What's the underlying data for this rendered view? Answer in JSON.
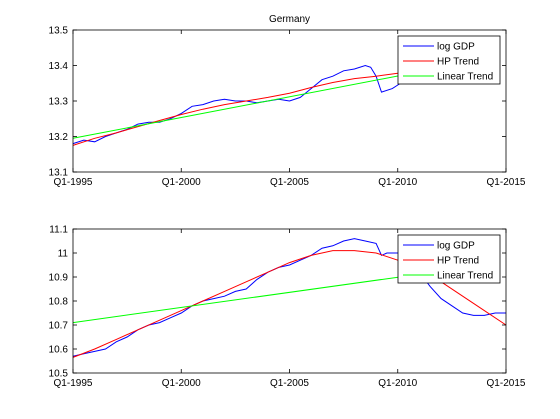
{
  "chart_data": [
    {
      "type": "line",
      "title": "Germany",
      "xlabel": "",
      "ylabel": "",
      "xlim": [
        1995,
        2015
      ],
      "ylim": [
        13.1,
        13.5
      ],
      "xticks": [
        1995,
        2000,
        2005,
        2010,
        2015
      ],
      "xtick_labels": [
        "Q1-1995",
        "Q1-2000",
        "Q1-2005",
        "Q1-2010",
        "Q1-2015"
      ],
      "yticks": [
        13.1,
        13.2,
        13.3,
        13.4,
        13.5
      ],
      "ytick_labels": [
        "13.1",
        "13.2",
        "13.3",
        "13.4",
        "13.5"
      ],
      "legend_position": "top-right",
      "series": [
        {
          "name": "log GDP",
          "color": "#0000ff",
          "points": [
            [
              1995.0,
              13.18
            ],
            [
              1995.5,
              13.19
            ],
            [
              1996.0,
              13.185
            ],
            [
              1996.5,
              13.2
            ],
            [
              1997.0,
              13.21
            ],
            [
              1997.5,
              13.22
            ],
            [
              1998.0,
              13.235
            ],
            [
              1998.5,
              13.24
            ],
            [
              1999.0,
              13.24
            ],
            [
              1999.5,
              13.25
            ],
            [
              2000.0,
              13.265
            ],
            [
              2000.5,
              13.285
            ],
            [
              2001.0,
              13.29
            ],
            [
              2001.5,
              13.3
            ],
            [
              2002.0,
              13.305
            ],
            [
              2002.5,
              13.3
            ],
            [
              2003.0,
              13.3
            ],
            [
              2003.5,
              13.295
            ],
            [
              2004.0,
              13.3
            ],
            [
              2004.5,
              13.305
            ],
            [
              2005.0,
              13.3
            ],
            [
              2005.5,
              13.31
            ],
            [
              2006.0,
              13.335
            ],
            [
              2006.5,
              13.36
            ],
            [
              2007.0,
              13.37
            ],
            [
              2007.5,
              13.385
            ],
            [
              2008.0,
              13.39
            ],
            [
              2008.5,
              13.4
            ],
            [
              2008.75,
              13.395
            ],
            [
              2009.0,
              13.37
            ],
            [
              2009.25,
              13.325
            ],
            [
              2009.75,
              13.335
            ],
            [
              2010.0,
              13.345
            ],
            [
              2010.5,
              13.365
            ],
            [
              2011.0,
              13.38
            ],
            [
              2011.5,
              13.385
            ]
          ]
        },
        {
          "name": "HP Trend",
          "color": "#ff0000",
          "points": [
            [
              1995.0,
              13.175
            ],
            [
              1996.0,
              13.195
            ],
            [
              1997.0,
              13.21
            ],
            [
              1998.0,
              13.228
            ],
            [
              1999.0,
              13.245
            ],
            [
              2000.0,
              13.262
            ],
            [
              2001.0,
              13.277
            ],
            [
              2002.0,
              13.29
            ],
            [
              2003.0,
              13.3
            ],
            [
              2004.0,
              13.31
            ],
            [
              2005.0,
              13.322
            ],
            [
              2006.0,
              13.338
            ],
            [
              2007.0,
              13.352
            ],
            [
              2008.0,
              13.363
            ],
            [
              2009.0,
              13.37
            ],
            [
              2010.0,
              13.378
            ],
            [
              2011.0,
              13.385
            ],
            [
              2011.5,
              13.39
            ]
          ]
        },
        {
          "name": "Linear Trend",
          "color": "#00ff00",
          "points": [
            [
              1995.0,
              13.195
            ],
            [
              2011.5,
              13.388
            ]
          ]
        }
      ]
    },
    {
      "type": "line",
      "title": "",
      "xlabel": "",
      "ylabel": "",
      "xlim": [
        1995,
        2015
      ],
      "ylim": [
        10.5,
        11.1
      ],
      "xticks": [
        1995,
        2000,
        2005,
        2010,
        2015
      ],
      "xtick_labels": [
        "Q1-1995",
        "Q1-2000",
        "Q1-2005",
        "Q1-2010",
        "Q1-2015"
      ],
      "yticks": [
        10.5,
        10.6,
        10.7,
        10.8,
        10.9,
        11.0,
        11.1
      ],
      "ytick_labels": [
        "10.5",
        "10.6",
        "10.7",
        "10.8",
        "10.9",
        "11",
        "11.1"
      ],
      "legend_position": "top-right",
      "series": [
        {
          "name": "log GDP",
          "color": "#0000ff",
          "points": [
            [
              1995.0,
              10.57
            ],
            [
              1995.5,
              10.58
            ],
            [
              1996.0,
              10.59
            ],
            [
              1996.5,
              10.6
            ],
            [
              1997.0,
              10.63
            ],
            [
              1997.5,
              10.65
            ],
            [
              1998.0,
              10.68
            ],
            [
              1998.5,
              10.7
            ],
            [
              1999.0,
              10.71
            ],
            [
              1999.5,
              10.73
            ],
            [
              2000.0,
              10.75
            ],
            [
              2000.5,
              10.78
            ],
            [
              2001.0,
              10.8
            ],
            [
              2001.5,
              10.81
            ],
            [
              2002.0,
              10.82
            ],
            [
              2002.5,
              10.84
            ],
            [
              2003.0,
              10.85
            ],
            [
              2003.5,
              10.89
            ],
            [
              2004.0,
              10.92
            ],
            [
              2004.5,
              10.94
            ],
            [
              2005.0,
              10.95
            ],
            [
              2005.5,
              10.97
            ],
            [
              2006.0,
              10.99
            ],
            [
              2006.5,
              11.02
            ],
            [
              2007.0,
              11.03
            ],
            [
              2007.5,
              11.05
            ],
            [
              2008.0,
              11.06
            ],
            [
              2008.5,
              11.05
            ],
            [
              2009.0,
              11.04
            ],
            [
              2009.25,
              10.99
            ],
            [
              2009.5,
              11.0
            ],
            [
              2010.0,
              11.0
            ],
            [
              2010.5,
              10.97
            ],
            [
              2011.0,
              10.92
            ],
            [
              2011.5,
              10.86
            ],
            [
              2012.0,
              10.81
            ],
            [
              2012.5,
              10.78
            ],
            [
              2013.0,
              10.75
            ],
            [
              2013.5,
              10.74
            ],
            [
              2014.0,
              10.74
            ],
            [
              2014.5,
              10.75
            ],
            [
              2015.0,
              10.75
            ]
          ]
        },
        {
          "name": "HP Trend",
          "color": "#ff0000",
          "points": [
            [
              1995.0,
              10.565
            ],
            [
              1996.0,
              10.6
            ],
            [
              1997.0,
              10.64
            ],
            [
              1998.0,
              10.68
            ],
            [
              1999.0,
              10.72
            ],
            [
              2000.0,
              10.76
            ],
            [
              2001.0,
              10.8
            ],
            [
              2002.0,
              10.84
            ],
            [
              2003.0,
              10.88
            ],
            [
              2004.0,
              10.92
            ],
            [
              2005.0,
              10.96
            ],
            [
              2006.0,
              10.99
            ],
            [
              2007.0,
              11.01
            ],
            [
              2008.0,
              11.01
            ],
            [
              2009.0,
              11.0
            ],
            [
              2010.0,
              10.97
            ],
            [
              2011.0,
              10.93
            ],
            [
              2012.0,
              10.88
            ],
            [
              2013.0,
              10.82
            ],
            [
              2014.0,
              10.76
            ],
            [
              2015.0,
              10.7
            ]
          ]
        },
        {
          "name": "Linear Trend",
          "color": "#00ff00",
          "points": [
            [
              1995.0,
              10.71
            ],
            [
              2011.5,
              10.918
            ]
          ]
        }
      ]
    }
  ]
}
